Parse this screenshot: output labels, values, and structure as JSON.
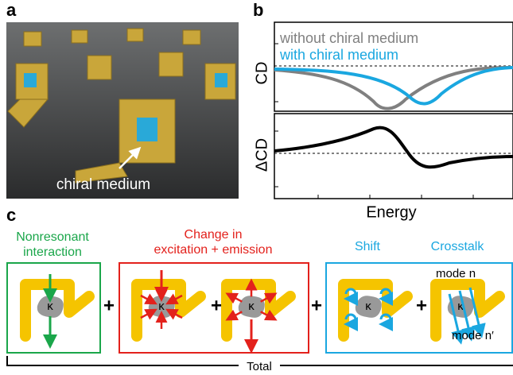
{
  "panels": {
    "a": "a",
    "b": "b",
    "c": "c"
  },
  "photo": {
    "label": "chiral medium"
  },
  "plot": {
    "legend": [
      "without chiral medium",
      "with chiral medium"
    ],
    "ylabel_top": "CD",
    "ylabel_bottom": "ΔCD",
    "xlabel": "Energy"
  },
  "mechanisms": {
    "nonresonant": [
      "Nonresonant",
      "interaction"
    ],
    "change": [
      "Change in",
      "excitation + emission"
    ],
    "shift": "Shift",
    "crosstalk": "Crosstalk",
    "mode_n": "mode n",
    "mode_n_prime": "mode n′"
  },
  "symbols": {
    "kappa": "κ",
    "plus": "+"
  },
  "total": "Total"
}
